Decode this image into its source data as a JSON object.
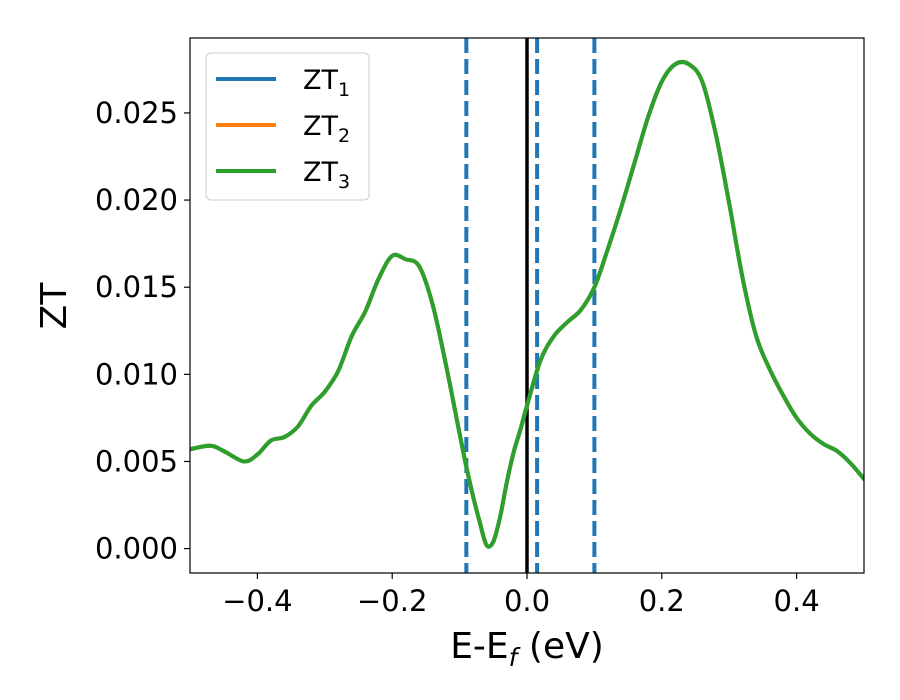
{
  "chart_data": {
    "type": "line",
    "xlabel": {
      "main": "E-E",
      "sub": "f",
      "unit": " (eV)"
    },
    "ylabel": "ZT",
    "xlim": [
      -0.5,
      0.5
    ],
    "ylim": [
      -0.0014,
      0.0293
    ],
    "x_ticks": [
      -0.4,
      -0.2,
      0.0,
      0.2,
      0.4
    ],
    "x_tick_labels": [
      "−0.4",
      "−0.2",
      "0.0",
      "0.2",
      "0.4"
    ],
    "y_ticks": [
      0.0,
      0.005,
      0.01,
      0.015,
      0.02,
      0.025
    ],
    "y_tick_labels": [
      "0.000",
      "0.005",
      "0.010",
      "0.015",
      "0.020",
      "0.025"
    ],
    "legend_position": "upper-left",
    "grid": false,
    "vertical_lines": [
      {
        "x": -0.09,
        "style": "dashed",
        "color": "#1f77b4"
      },
      {
        "x": 0.0,
        "style": "solid",
        "color": "#000000"
      },
      {
        "x": 0.015,
        "style": "dashed",
        "color": "#1f77b4"
      },
      {
        "x": 0.1,
        "style": "dashed",
        "color": "#1f77b4"
      }
    ],
    "x": [
      -0.5,
      -0.47,
      -0.45,
      -0.42,
      -0.4,
      -0.38,
      -0.36,
      -0.34,
      -0.32,
      -0.3,
      -0.28,
      -0.26,
      -0.24,
      -0.22,
      -0.2,
      -0.18,
      -0.16,
      -0.14,
      -0.12,
      -0.1,
      -0.09,
      -0.08,
      -0.07,
      -0.06,
      -0.05,
      -0.04,
      -0.03,
      -0.02,
      -0.01,
      0.0,
      0.02,
      0.04,
      0.06,
      0.08,
      0.1,
      0.12,
      0.14,
      0.16,
      0.18,
      0.2,
      0.22,
      0.24,
      0.26,
      0.28,
      0.3,
      0.32,
      0.34,
      0.36,
      0.38,
      0.4,
      0.42,
      0.44,
      0.46,
      0.48,
      0.5
    ],
    "series": [
      {
        "name": "ZT",
        "sub": "1",
        "color": "#1f77b4",
        "values": [
          0.0057,
          0.0059,
          0.0056,
          0.005,
          0.0054,
          0.0062,
          0.0064,
          0.007,
          0.0082,
          0.009,
          0.0102,
          0.0122,
          0.0136,
          0.0155,
          0.0168,
          0.0166,
          0.0162,
          0.014,
          0.0105,
          0.0066,
          0.0047,
          0.003,
          0.0015,
          0.0002,
          0.0004,
          0.0018,
          0.0038,
          0.0055,
          0.0068,
          0.0082,
          0.0108,
          0.0122,
          0.013,
          0.0137,
          0.015,
          0.0172,
          0.0196,
          0.0222,
          0.0248,
          0.0268,
          0.0278,
          0.0278,
          0.0268,
          0.0238,
          0.0198,
          0.0155,
          0.0122,
          0.0103,
          0.0088,
          0.0075,
          0.0066,
          0.006,
          0.0056,
          0.0049,
          0.004
        ]
      },
      {
        "name": "ZT",
        "sub": "2",
        "color": "#ff7f0e",
        "values": [
          0.0057,
          0.0059,
          0.0056,
          0.005,
          0.0054,
          0.0062,
          0.0064,
          0.007,
          0.0082,
          0.009,
          0.0102,
          0.0122,
          0.0136,
          0.0155,
          0.0168,
          0.0166,
          0.0162,
          0.014,
          0.0105,
          0.0066,
          0.0047,
          0.003,
          0.0015,
          0.0002,
          0.0004,
          0.0018,
          0.0038,
          0.0055,
          0.0068,
          0.0082,
          0.0108,
          0.0122,
          0.013,
          0.0137,
          0.015,
          0.0172,
          0.0196,
          0.0222,
          0.0248,
          0.0268,
          0.0278,
          0.0278,
          0.0268,
          0.0238,
          0.0198,
          0.0155,
          0.0122,
          0.0103,
          0.0088,
          0.0075,
          0.0066,
          0.006,
          0.0056,
          0.0049,
          0.004
        ]
      },
      {
        "name": "ZT",
        "sub": "3",
        "color": "#2ca02c",
        "values": [
          0.0057,
          0.0059,
          0.0056,
          0.005,
          0.0054,
          0.0062,
          0.0064,
          0.007,
          0.0082,
          0.009,
          0.0102,
          0.0122,
          0.0136,
          0.0155,
          0.0168,
          0.0166,
          0.0162,
          0.014,
          0.0105,
          0.0066,
          0.0047,
          0.003,
          0.0015,
          0.0002,
          0.0004,
          0.0018,
          0.0038,
          0.0055,
          0.0068,
          0.0082,
          0.0108,
          0.0122,
          0.013,
          0.0137,
          0.015,
          0.0172,
          0.0196,
          0.0222,
          0.0248,
          0.0268,
          0.0278,
          0.0278,
          0.0268,
          0.0238,
          0.0198,
          0.0155,
          0.0122,
          0.0103,
          0.0088,
          0.0075,
          0.0066,
          0.006,
          0.0056,
          0.0049,
          0.004
        ]
      }
    ]
  }
}
